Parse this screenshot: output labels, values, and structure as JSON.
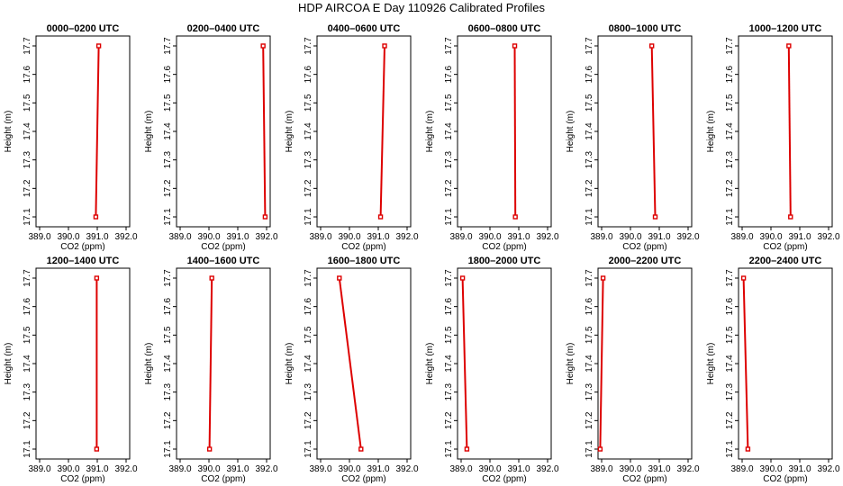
{
  "figure": {
    "title": "HDP AIRCOA E  Day 110926  Calibrated Profiles"
  },
  "chart_data": [
    {
      "type": "line",
      "title": "0000–0200 UTC",
      "xlabel": "CO2 (ppm)",
      "ylabel": "Height (m)",
      "xlim": [
        389.0,
        392.0
      ],
      "ylim": [
        17.1,
        17.7
      ],
      "x_ticks": [
        "389.0",
        "390.0",
        "391.0",
        "392.0"
      ],
      "y_ticks": [
        "17.1",
        "17.2",
        "17.3",
        "17.4",
        "17.5",
        "17.6",
        "17.7"
      ],
      "series": [
        {
          "x": [
            390.95,
            391.05
          ],
          "y": [
            17.1,
            17.7
          ]
        }
      ]
    },
    {
      "type": "line",
      "title": "0200–0400 UTC",
      "xlabel": "CO2 (ppm)",
      "ylabel": "Height (m)",
      "xlim": [
        389.0,
        392.0
      ],
      "ylim": [
        17.1,
        17.7
      ],
      "x_ticks": [
        "389.0",
        "390.0",
        "391.0",
        "392.0"
      ],
      "y_ticks": [
        "17.1",
        "17.2",
        "17.3",
        "17.4",
        "17.5",
        "17.6",
        "17.7"
      ],
      "series": [
        {
          "x": [
            391.95,
            391.88
          ],
          "y": [
            17.1,
            17.7
          ]
        }
      ]
    },
    {
      "type": "line",
      "title": "0400–0600 UTC",
      "xlabel": "CO2 (ppm)",
      "ylabel": "Height (m)",
      "xlim": [
        389.0,
        392.0
      ],
      "ylim": [
        17.1,
        17.7
      ],
      "x_ticks": [
        "389.0",
        "390.0",
        "391.0",
        "392.0"
      ],
      "y_ticks": [
        "17.1",
        "17.2",
        "17.3",
        "17.4",
        "17.5",
        "17.6",
        "17.7"
      ],
      "series": [
        {
          "x": [
            391.08,
            391.22
          ],
          "y": [
            17.1,
            17.7
          ]
        }
      ]
    },
    {
      "type": "line",
      "title": "0600–0800 UTC",
      "xlabel": "CO2 (ppm)",
      "ylabel": "Height (m)",
      "xlim": [
        389.0,
        392.0
      ],
      "ylim": [
        17.1,
        17.7
      ],
      "x_ticks": [
        "389.0",
        "390.0",
        "391.0",
        "392.0"
      ],
      "y_ticks": [
        "17.1",
        "17.2",
        "17.3",
        "17.4",
        "17.5",
        "17.6",
        "17.7"
      ],
      "series": [
        {
          "x": [
            390.88,
            390.86
          ],
          "y": [
            17.1,
            17.7
          ]
        }
      ]
    },
    {
      "type": "line",
      "title": "0800–1000 UTC",
      "xlabel": "CO2 (ppm)",
      "ylabel": "Height (m)",
      "xlim": [
        389.0,
        392.0
      ],
      "ylim": [
        17.1,
        17.7
      ],
      "x_ticks": [
        "389.0",
        "390.0",
        "391.0",
        "392.0"
      ],
      "y_ticks": [
        "17.1",
        "17.2",
        "17.3",
        "17.4",
        "17.5",
        "17.6",
        "17.7"
      ],
      "series": [
        {
          "x": [
            390.86,
            390.74
          ],
          "y": [
            17.1,
            17.7
          ]
        }
      ]
    },
    {
      "type": "line",
      "title": "1000–1200 UTC",
      "xlabel": "CO2 (ppm)",
      "ylabel": "Height (m)",
      "xlim": [
        389.0,
        392.0
      ],
      "ylim": [
        17.1,
        17.7
      ],
      "x_ticks": [
        "389.0",
        "390.0",
        "391.0",
        "392.0"
      ],
      "y_ticks": [
        "17.1",
        "17.2",
        "17.3",
        "17.4",
        "17.5",
        "17.6",
        "17.7"
      ],
      "series": [
        {
          "x": [
            390.68,
            390.62
          ],
          "y": [
            17.1,
            17.7
          ]
        }
      ]
    },
    {
      "type": "line",
      "title": "1200–1400 UTC",
      "xlabel": "CO2 (ppm)",
      "ylabel": "Height (m)",
      "xlim": [
        389.0,
        392.0
      ],
      "ylim": [
        17.1,
        17.7
      ],
      "x_ticks": [
        "389.0",
        "390.0",
        "391.0",
        "392.0"
      ],
      "y_ticks": [
        "17.1",
        "17.2",
        "17.3",
        "17.4",
        "17.5",
        "17.6",
        "17.7"
      ],
      "series": [
        {
          "x": [
            390.98,
            390.98
          ],
          "y": [
            17.1,
            17.7
          ]
        }
      ]
    },
    {
      "type": "line",
      "title": "1400–1600 UTC",
      "xlabel": "CO2 (ppm)",
      "ylabel": "Height (m)",
      "xlim": [
        389.0,
        392.0
      ],
      "ylim": [
        17.1,
        17.7
      ],
      "x_ticks": [
        "389.0",
        "390.0",
        "391.0",
        "392.0"
      ],
      "y_ticks": [
        "17.1",
        "17.2",
        "17.3",
        "17.4",
        "17.5",
        "17.6",
        "17.7"
      ],
      "series": [
        {
          "x": [
            390.02,
            390.1
          ],
          "y": [
            17.1,
            17.7
          ]
        }
      ]
    },
    {
      "type": "line",
      "title": "1600–1800 UTC",
      "xlabel": "CO2 (ppm)",
      "ylabel": "Height (m)",
      "xlim": [
        389.0,
        392.0
      ],
      "ylim": [
        17.1,
        17.7
      ],
      "x_ticks": [
        "389.0",
        "390.0",
        "391.0",
        "392.0"
      ],
      "y_ticks": [
        "17.1",
        "17.2",
        "17.3",
        "17.4",
        "17.5",
        "17.6",
        "17.7"
      ],
      "series": [
        {
          "x": [
            390.4,
            389.65
          ],
          "y": [
            17.1,
            17.7
          ]
        }
      ]
    },
    {
      "type": "line",
      "title": "1800–2000 UTC",
      "xlabel": "CO2 (ppm)",
      "ylabel": "Height (m)",
      "xlim": [
        389.0,
        392.0
      ],
      "ylim": [
        17.1,
        17.7
      ],
      "x_ticks": [
        "389.0",
        "390.0",
        "391.0",
        "392.0"
      ],
      "y_ticks": [
        "17.1",
        "17.2",
        "17.3",
        "17.4",
        "17.5",
        "17.6",
        "17.7"
      ],
      "series": [
        {
          "x": [
            389.2,
            389.05
          ],
          "y": [
            17.1,
            17.7
          ]
        }
      ]
    },
    {
      "type": "line",
      "title": "2000–2200 UTC",
      "xlabel": "CO2 (ppm)",
      "ylabel": "Height (m)",
      "xlim": [
        389.0,
        392.0
      ],
      "ylim": [
        17.1,
        17.7
      ],
      "x_ticks": [
        "389.0",
        "390.0",
        "391.0",
        "392.0"
      ],
      "y_ticks": [
        "17.1",
        "17.2",
        "17.3",
        "17.4",
        "17.5",
        "17.6",
        "17.7"
      ],
      "series": [
        {
          "x": [
            388.95,
            389.05
          ],
          "y": [
            17.1,
            17.7
          ]
        }
      ]
    },
    {
      "type": "line",
      "title": "2200–2400 UTC",
      "xlabel": "CO2 (ppm)",
      "ylabel": "Height (m)",
      "xlim": [
        389.0,
        392.0
      ],
      "ylim": [
        17.1,
        17.7
      ],
      "x_ticks": [
        "389.0",
        "390.0",
        "391.0",
        "392.0"
      ],
      "y_ticks": [
        "17.1",
        "17.2",
        "17.3",
        "17.4",
        "17.5",
        "17.6",
        "17.7"
      ],
      "series": [
        {
          "x": [
            389.2,
            389.05
          ],
          "y": [
            17.1,
            17.7
          ]
        }
      ]
    }
  ],
  "colors": {
    "series_line": "#dd0000",
    "marker": "#dd0000",
    "axis": "#000000"
  }
}
